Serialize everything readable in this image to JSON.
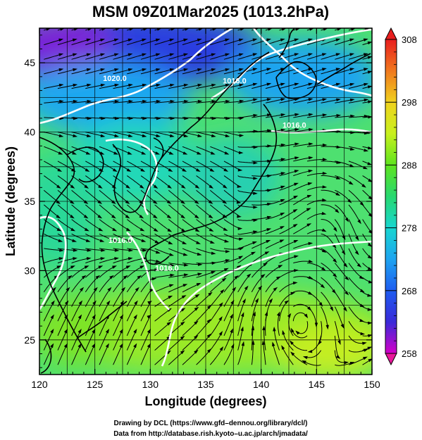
{
  "figure": {
    "title": "MSM 09Z01Mar2025 (1013.2hPa)",
    "credits": [
      "Drawing by DCL (https://www.gfd–dennou.org/library/dcl/)",
      "Data from http://database.rish.kyoto–u.ac.jp/arch/jmadata/"
    ]
  },
  "map": {
    "xlabel": "Longitude (degrees)",
    "ylabel": "Latitude  (degrees)",
    "xlim": [
      120,
      150
    ],
    "ylim": [
      22.5,
      47.5
    ],
    "xticks": [
      "120",
      "125",
      "130",
      "135",
      "140",
      "145",
      "150"
    ],
    "xtick_values": [
      120,
      125,
      130,
      135,
      140,
      145,
      150
    ],
    "yticks": [
      "25",
      "30",
      "35",
      "40",
      "45"
    ],
    "ytick_values": [
      25,
      30,
      35,
      40,
      45
    ],
    "grid_lon_step": 2.5,
    "grid_lat_step": 2.5,
    "contour_labels": [
      {
        "text": "1020.0",
        "lon": 126.8,
        "lat": 43.7
      },
      {
        "text": "1016.0",
        "lon": 137.6,
        "lat": 43.5
      },
      {
        "text": "1016.0",
        "lon": 143.0,
        "lat": 40.3
      },
      {
        "text": "1016.0",
        "lon": 127.3,
        "lat": 32.0
      },
      {
        "text": "1016.0",
        "lon": 131.5,
        "lat": 30.0
      }
    ],
    "wind_field": "streamlines",
    "contour_color": "#ffffff",
    "land_outline_color": "#000000"
  },
  "colorbar": {
    "min": 258,
    "max": 308,
    "ticks": [
      "308",
      "298",
      "288",
      "278",
      "268",
      "258"
    ],
    "tick_values": [
      308,
      298,
      288,
      278,
      268,
      258
    ],
    "colors": [
      "#d400c8",
      "#3a2ad8",
      "#1e5cf0",
      "#1ea4f0",
      "#18d6d0",
      "#28d870",
      "#5ee41e",
      "#c8f01e",
      "#f0d21e",
      "#f0781e",
      "#e81e1e"
    ]
  }
}
